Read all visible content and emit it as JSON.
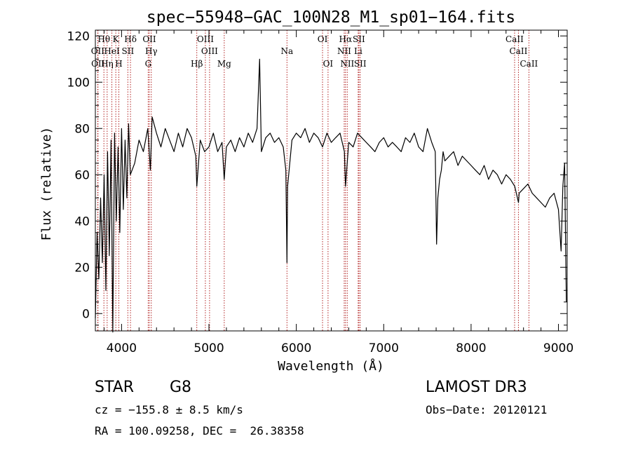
{
  "chart_data": {
    "type": "line",
    "title": "spec−55948−GAC_100N28_M1_sp01−164.fits",
    "xlabel": "Wavelength (Å)",
    "ylabel": "Flux (relative)",
    "xlim": [
      3700,
      9100
    ],
    "ylim": [
      -7.5,
      122.5
    ],
    "x_ticks": [
      4000,
      5000,
      6000,
      7000,
      8000,
      9000
    ],
    "y_ticks": [
      0,
      20,
      40,
      60,
      80,
      100,
      120
    ],
    "x_tick_labels": [
      "4000",
      "5000",
      "6000",
      "7000",
      "8000",
      "9000"
    ],
    "y_tick_labels": [
      "0",
      "20",
      "40",
      "60",
      "80",
      "100",
      "120"
    ],
    "grid": false,
    "series": [
      {
        "name": "flux",
        "color": "#000000",
        "x": [
          3700,
          3720,
          3740,
          3760,
          3780,
          3800,
          3820,
          3840,
          3860,
          3880,
          3900,
          3920,
          3940,
          3960,
          3980,
          4000,
          4020,
          4040,
          4060,
          4080,
          4100,
          4150,
          4200,
          4250,
          4300,
          4330,
          4350,
          4400,
          4450,
          4500,
          4550,
          4600,
          4650,
          4700,
          4750,
          4800,
          4850,
          4861,
          4900,
          4950,
          5000,
          5050,
          5100,
          5150,
          5175,
          5200,
          5250,
          5300,
          5350,
          5400,
          5450,
          5500,
          5550,
          5580,
          5600,
          5650,
          5700,
          5750,
          5800,
          5850,
          5880,
          5893,
          5900,
          5950,
          6000,
          6050,
          6100,
          6150,
          6200,
          6250,
          6300,
          6350,
          6400,
          6450,
          6500,
          6550,
          6563,
          6600,
          6650,
          6700,
          6750,
          6800,
          6850,
          6900,
          6950,
          7000,
          7050,
          7100,
          7150,
          7200,
          7250,
          7300,
          7350,
          7400,
          7450,
          7500,
          7550,
          7590,
          7605,
          7620,
          7640,
          7660,
          7680,
          7700,
          7750,
          7800,
          7850,
          7900,
          7950,
          8000,
          8050,
          8100,
          8150,
          8200,
          8250,
          8300,
          8350,
          8400,
          8450,
          8500,
          8542,
          8550,
          8600,
          8650,
          8700,
          8750,
          8800,
          8850,
          8900,
          8950,
          9000,
          9030,
          9050,
          9070,
          9090
        ],
        "y": [
          -2,
          35,
          15,
          50,
          22,
          60,
          10,
          70,
          25,
          75,
          -8,
          78,
          40,
          72,
          35,
          80,
          45,
          75,
          50,
          82,
          60,
          65,
          75,
          70,
          80,
          62,
          85,
          78,
          72,
          80,
          75,
          70,
          78,
          72,
          80,
          76,
          68,
          55,
          75,
          70,
          72,
          78,
          70,
          74,
          58,
          72,
          75,
          70,
          76,
          72,
          78,
          74,
          80,
          110,
          70,
          76,
          78,
          74,
          76,
          72,
          62,
          22,
          55,
          75,
          78,
          76,
          80,
          74,
          78,
          76,
          72,
          78,
          74,
          76,
          78,
          70,
          55,
          74,
          72,
          78,
          76,
          74,
          72,
          70,
          74,
          76,
          72,
          74,
          72,
          70,
          76,
          74,
          78,
          72,
          70,
          80,
          74,
          70,
          30,
          50,
          58,
          62,
          70,
          66,
          68,
          70,
          64,
          68,
          66,
          64,
          62,
          60,
          64,
          58,
          62,
          60,
          56,
          60,
          58,
          55,
          48,
          52,
          54,
          56,
          52,
          50,
          48,
          46,
          50,
          52,
          45,
          27,
          55,
          65,
          5
        ]
      }
    ],
    "spectral_lines": [
      {
        "label": "Hθ",
        "wavelength": 3798,
        "row": 0
      },
      {
        "label": "K",
        "wavelength": 3934,
        "row": 0
      },
      {
        "label": "Hδ",
        "wavelength": 4102,
        "row": 0
      },
      {
        "label": "OII",
        "wavelength": 4318,
        "row": 0
      },
      {
        "label": "OIII",
        "wavelength": 4959,
        "row": 0
      },
      {
        "label": "OI",
        "wavelength": 6300,
        "row": 0
      },
      {
        "label": "Hα",
        "wavelength": 6563,
        "row": 0
      },
      {
        "label": "SII",
        "wavelength": 6716,
        "row": 0
      },
      {
        "label": "CaII",
        "wavelength": 8498,
        "row": 0
      },
      {
        "label": "OII",
        "wavelength": 3727,
        "row": 1
      },
      {
        "label": "HeI",
        "wavelength": 3889,
        "row": 1
      },
      {
        "label": "SII",
        "wavelength": 4072,
        "row": 1
      },
      {
        "label": "Hγ",
        "wavelength": 4340,
        "row": 1
      },
      {
        "label": "OIII",
        "wavelength": 5007,
        "row": 1
      },
      {
        "label": "Na",
        "wavelength": 5893,
        "row": 1
      },
      {
        "label": "NII",
        "wavelength": 6548,
        "row": 1
      },
      {
        "label": "Li",
        "wavelength": 6708,
        "row": 1
      },
      {
        "label": "CaII",
        "wavelength": 8542,
        "row": 1
      },
      {
        "label": "OII",
        "wavelength": 3730,
        "row": 2
      },
      {
        "label": "Hη",
        "wavelength": 3835,
        "row": 2
      },
      {
        "label": "H",
        "wavelength": 3969,
        "row": 2
      },
      {
        "label": "G",
        "wavelength": 4305,
        "row": 2
      },
      {
        "label": "Hβ",
        "wavelength": 4861,
        "row": 2
      },
      {
        "label": "Mg",
        "wavelength": 5175,
        "row": 2
      },
      {
        "label": "OI",
        "wavelength": 6363,
        "row": 2
      },
      {
        "label": "NII",
        "wavelength": 6583,
        "row": 2
      },
      {
        "label": "SII",
        "wavelength": 6731,
        "row": 2
      },
      {
        "label": "CaII",
        "wavelength": 8662,
        "row": 2
      }
    ],
    "line_marker_color": "#b22222"
  },
  "info": {
    "object_class": "STAR",
    "subclass": "G8",
    "redshift": "cz = −155.8 ± 8.5 km/s",
    "coords": "RA = 100.09258, DEC =  26.38358",
    "survey": "LAMOST DR3",
    "obs_date": "Obs−Date: 20120121"
  }
}
